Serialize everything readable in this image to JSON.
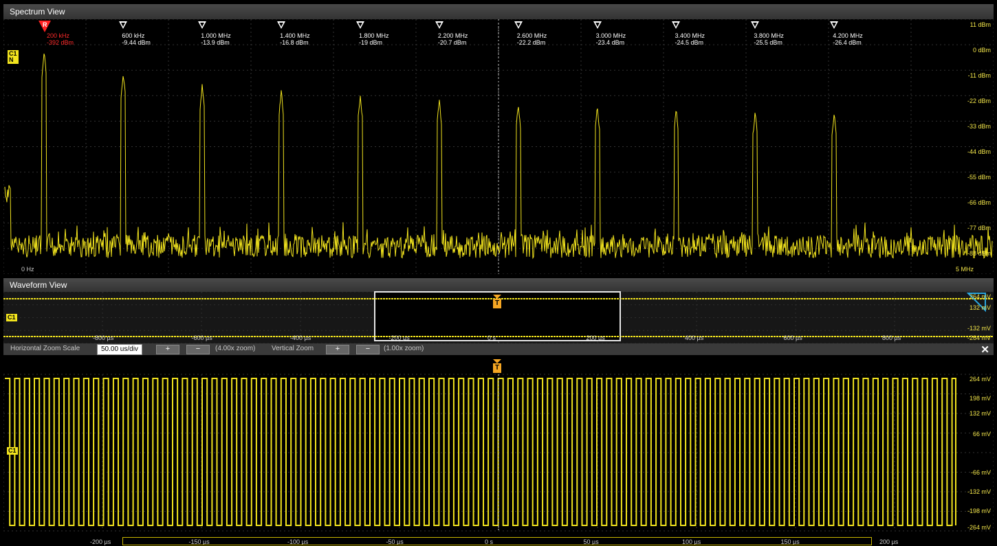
{
  "spectrum": {
    "title": "Spectrum View",
    "channel_badge": "C1\nN",
    "ref_marker": {
      "symbol": "R",
      "freq": "200 kHz",
      "level": "-392 dBm"
    },
    "markers": [
      {
        "freq": "600 kHz",
        "level": "-9.44 dBm"
      },
      {
        "freq": "1.000 MHz",
        "level": "-13.9 dBm"
      },
      {
        "freq": "1.400 MHz",
        "level": "-16.8 dBm"
      },
      {
        "freq": "1.800 MHz",
        "level": "-19 dBm"
      },
      {
        "freq": "2.200 MHz",
        "level": "-20.7 dBm"
      },
      {
        "freq": "2.600 MHz",
        "level": "-22.2 dBm"
      },
      {
        "freq": "3.000 MHz",
        "level": "-23.4 dBm"
      },
      {
        "freq": "3.400 MHz",
        "level": "-24.5 dBm"
      },
      {
        "freq": "3.800 MHz",
        "level": "-25.5 dBm"
      },
      {
        "freq": "4.200 MHz",
        "level": "-26.4 dBm"
      }
    ],
    "y_labels": [
      "11 dBm",
      "0 dBm",
      "-11 dBm",
      "-22 dBm",
      "-33 dBm",
      "-44 dBm",
      "-55 dBm",
      "-66 dBm",
      "-77 dBm",
      "-88 dBm"
    ],
    "x_start_label": "0 Hz",
    "x_end_label": "5 MHz"
  },
  "waveform": {
    "title": "Waveform View",
    "overview": {
      "channel": "C1",
      "trigger": "T",
      "x_labels": [
        "-800 µs",
        "-600 µs",
        "-400 µs",
        "-200 µs",
        "0 s",
        "200 µs",
        "400 µs",
        "600 µs",
        "800 µs"
      ],
      "y_labels": [
        "264 mV",
        "132 mV",
        "-132 mV",
        "-264 mV"
      ]
    },
    "zoom_bar": {
      "h_label": "Horizontal Zoom Scale",
      "h_value": "50.00 us/div",
      "h_zoom": "(4.00x zoom)",
      "v_label": "Vertical Zoom",
      "v_zoom": "(1.00x zoom)",
      "plus": "+",
      "minus": "−",
      "close": "✕"
    },
    "main": {
      "channel": "C1",
      "trigger": "T",
      "y_labels": [
        "264 mV",
        "198 mV",
        "132 mV",
        "66 mV",
        "-66 mV",
        "-132 mV",
        "-198 mV",
        "-264 mV"
      ],
      "x_labels": [
        "-200 µs",
        "-150 µs",
        "-100 µs",
        "-50 µs",
        "0 s",
        "50 µs",
        "100 µs",
        "150 µs",
        "200 µs"
      ]
    }
  },
  "colors": {
    "trace": "#f2e41e",
    "trigger": "#f5a623",
    "reference": "#ff2222",
    "accent": "#2aa7e0"
  }
}
